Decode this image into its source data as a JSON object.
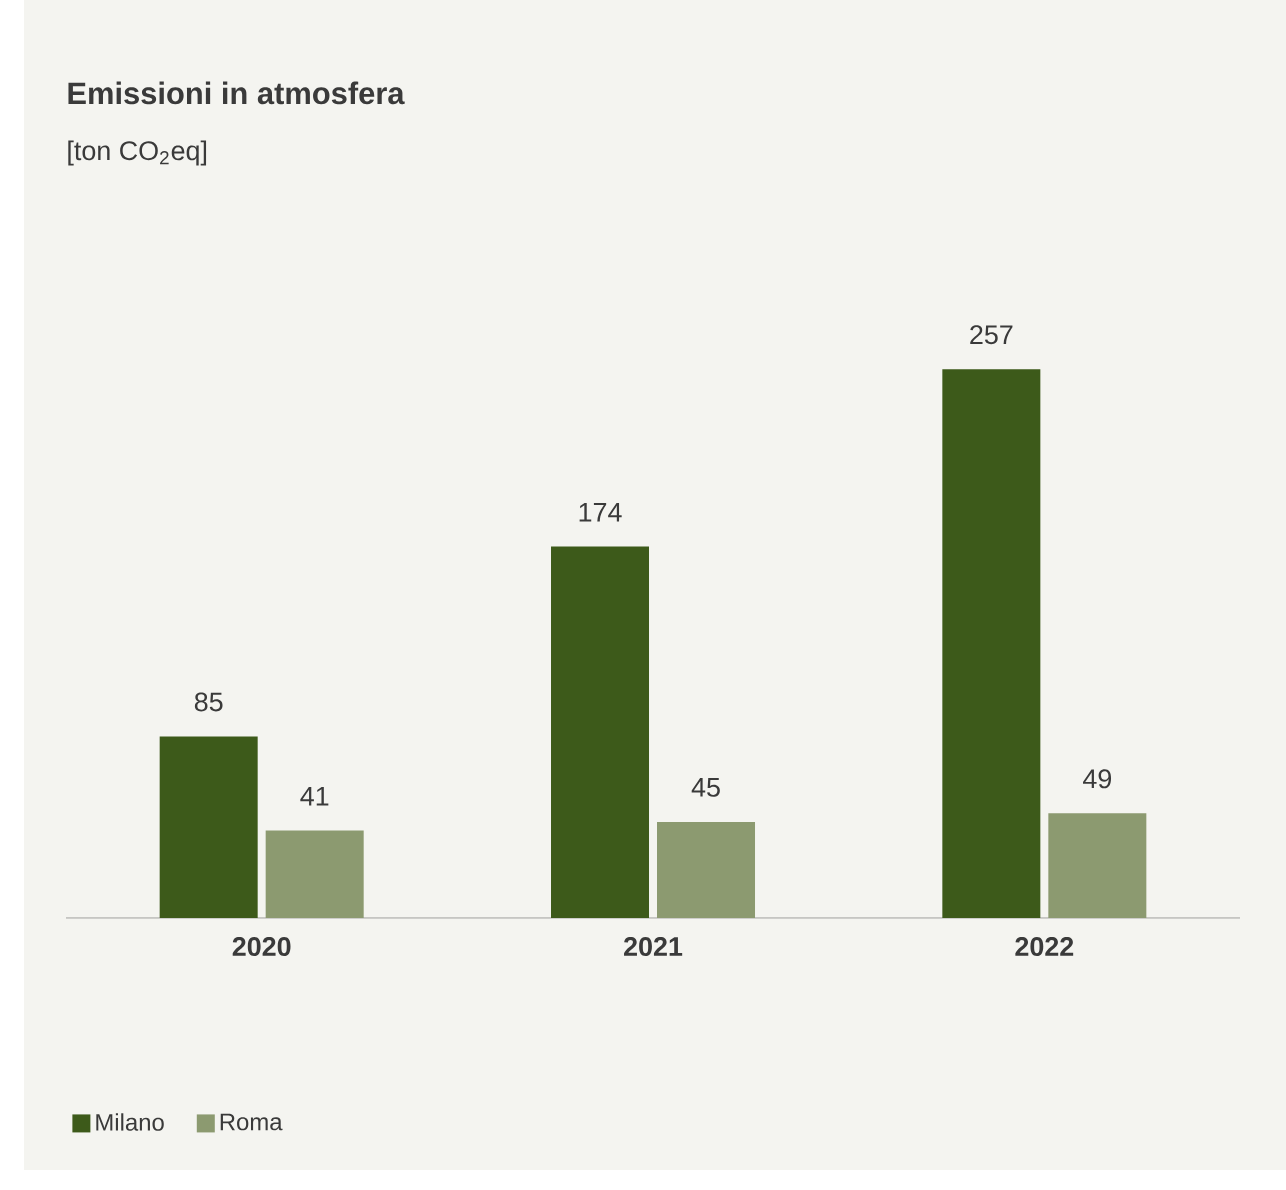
{
  "chart_data": {
    "type": "bar",
    "title": "Emissioni in atmosfera",
    "subtitle": "[ton CO$_{2}$eq]",
    "categories": [
      "2020",
      "2021",
      "2022"
    ],
    "series": [
      {
        "name": "Milano",
        "color": "#3d5a1a",
        "values": [
          85,
          174,
          257
        ]
      },
      {
        "name": "Roma",
        "color": "#8c9a70",
        "values": [
          41,
          45,
          49
        ]
      }
    ],
    "data_labels": true,
    "legend": "bottom left"
  }
}
